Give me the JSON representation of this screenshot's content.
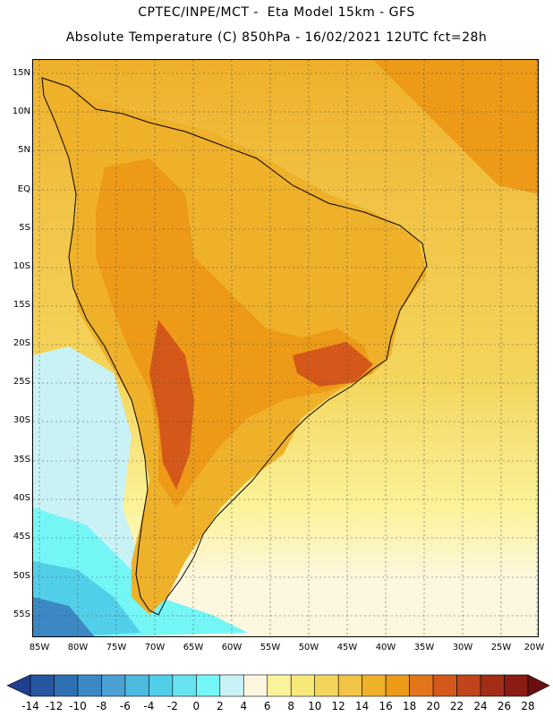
{
  "header": {
    "line1": "CPTEC/INPE/MCT -  Eta Model 15km - GFS",
    "line2": "Absolute Temperature (C) 850hPa - 16/02/2021 12UTC fct=28h"
  },
  "lat_labels": [
    "15N",
    "10N",
    "5N",
    "EQ",
    "5S",
    "10S",
    "15S",
    "20S",
    "25S",
    "30S",
    "35S",
    "40S",
    "45S",
    "50S",
    "55S"
  ],
  "lon_labels": [
    "85W",
    "80W",
    "75W",
    "70W",
    "65W",
    "60W",
    "55W",
    "50W",
    "45W",
    "40W",
    "35W",
    "30W",
    "25W",
    "20W"
  ],
  "colorbar": {
    "labels": [
      "-14",
      "-12",
      "-10",
      "-8",
      "-6",
      "-4",
      "-2",
      "0",
      "2",
      "4",
      "6",
      "8",
      "10",
      "12",
      "14",
      "16",
      "18",
      "20",
      "22",
      "24",
      "26",
      "28"
    ],
    "colors": [
      "#1f3f8f",
      "#26579f",
      "#2e70b3",
      "#3b88c4",
      "#4aa0d2",
      "#4cb9df",
      "#52cfe8",
      "#66e3ef",
      "#74f6f6",
      "#c9f2f7",
      "#fdf7e0",
      "#fbf39c",
      "#f7e87a",
      "#f4d55c",
      "#f1c346",
      "#efb02a",
      "#ec9a17",
      "#e2751a",
      "#d4581a",
      "#c0451a",
      "#a32d16",
      "#8a1c14",
      "#6b0f10"
    ]
  }
}
